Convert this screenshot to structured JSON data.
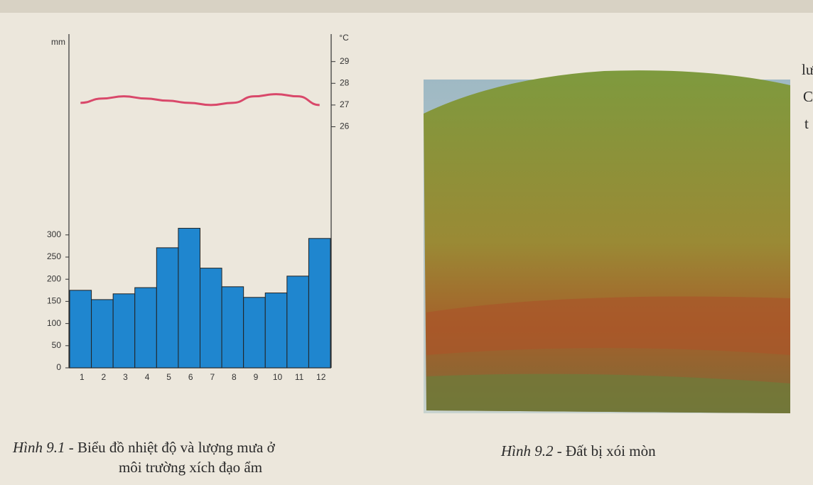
{
  "chart_data": {
    "type": "bar",
    "categories": [
      "1",
      "2",
      "3",
      "4",
      "5",
      "6",
      "7",
      "8",
      "9",
      "10",
      "11",
      "12"
    ],
    "y_unit": "mm",
    "y2_unit": "°C",
    "ylim": [
      0,
      750
    ],
    "yticks": [
      0,
      50,
      100,
      150,
      200,
      250,
      300
    ],
    "y2lim": [
      14.9,
      30.2
    ],
    "y2ticks": [
      26,
      27,
      28,
      29
    ],
    "series": [
      {
        "type": "bar",
        "color": "#1f86cf",
        "values": [
          175,
          154,
          167,
          181,
          271,
          315,
          225,
          183,
          159,
          169,
          207,
          292
        ]
      },
      {
        "type": "line",
        "axis": "y2",
        "color": "#d9486a",
        "values": [
          27.1,
          27.3,
          27.4,
          27.3,
          27.2,
          27.1,
          27.0,
          27.1,
          27.4,
          27.5,
          27.4,
          27.0
        ]
      }
    ]
  },
  "captions": [
    {
      "label": "Hình 9.1",
      "line1": " - Biểu đồ nhiệt độ và lượng mưa ở",
      "line2": "môi trường xích đạo ẩm"
    },
    {
      "label": "Hình 9.2",
      "line1": " - Đất bị xói mòn"
    }
  ],
  "margin_text": [
    "lư",
    "C",
    "t"
  ]
}
